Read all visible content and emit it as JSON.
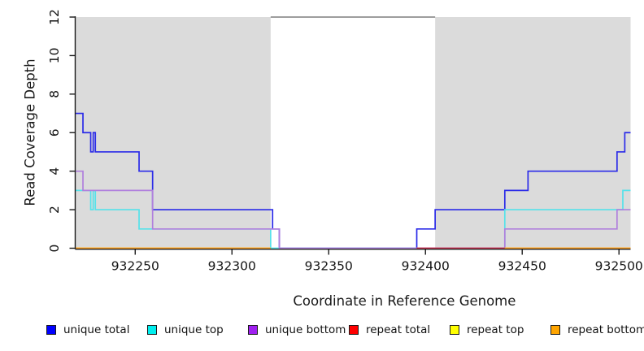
{
  "chart_data": {
    "type": "step-line",
    "title": "",
    "xlabel": "Coordinate in Reference Genome",
    "ylabel": "Read Coverage Depth",
    "xlim": [
      932219,
      932506
    ],
    "ylim": [
      0,
      12
    ],
    "x_ticks": [
      932250,
      932300,
      932350,
      932400,
      932450,
      932500
    ],
    "y_ticks": [
      0,
      2,
      4,
      6,
      8,
      10,
      12
    ],
    "grid": "off",
    "shaded_regions": [
      {
        "x0": 932219,
        "x1": 932320,
        "color": "#dbdbdb"
      },
      {
        "x0": 932405,
        "x1": 932506,
        "color": "#dbdbdb"
      }
    ],
    "gap_top_line": {
      "x0": 932320,
      "x1": 932405,
      "y": 12,
      "color": "#7d7d7d"
    },
    "series": [
      {
        "name": "unique total",
        "color": "#2b2be8",
        "segments": [
          [
            [
              932219,
              7
            ],
            [
              932223,
              6
            ],
            [
              932227,
              5
            ],
            [
              932228.3,
              6
            ],
            [
              932229.4,
              5
            ],
            [
              932252,
              4
            ],
            [
              932259,
              2
            ],
            [
              932321,
              1
            ],
            [
              932324.5,
              0
            ],
            [
              932395.5,
              1
            ],
            [
              932405,
              2
            ],
            [
              932441,
              3
            ],
            [
              932453,
              4
            ],
            [
              932499,
              5
            ],
            [
              932503,
              6
            ],
            [
              932506,
              6
            ]
          ]
        ]
      },
      {
        "name": "unique top",
        "color": "#55e2ea",
        "segments": [
          [
            [
              932219,
              3
            ],
            [
              932227,
              2
            ],
            [
              932228.3,
              3
            ],
            [
              932229.4,
              2
            ],
            [
              932252,
              1
            ],
            [
              932320,
              0
            ],
            [
              932441,
              2
            ],
            [
              932502,
              3
            ],
            [
              932506,
              3
            ]
          ]
        ]
      },
      {
        "name": "unique bottom",
        "color": "#b07fdd",
        "segments": [
          [
            [
              932219,
              4
            ],
            [
              932223,
              3
            ],
            [
              932259,
              1
            ],
            [
              932324.5,
              0
            ],
            [
              932441,
              1
            ],
            [
              932499,
              2
            ],
            [
              932506,
              2
            ]
          ]
        ]
      },
      {
        "name": "repeat total",
        "color": "#cc3350",
        "segments": [
          [
            [
              932395.5,
              0
            ],
            [
              932506,
              0
            ]
          ]
        ]
      },
      {
        "name": "repeat top",
        "color": "#ffee33",
        "segments": [
          [
            [
              932219,
              0
            ],
            [
              932320,
              0
            ]
          ],
          [
            [
              932441,
              0
            ],
            [
              932506,
              0
            ]
          ]
        ]
      },
      {
        "name": "repeat bottom",
        "color": "#ff9d1e",
        "segments": [
          [
            [
              932219,
              0
            ],
            [
              932320,
              0
            ]
          ],
          [
            [
              932441,
              0
            ],
            [
              932506,
              0
            ]
          ]
        ]
      }
    ]
  },
  "legend": {
    "items": [
      {
        "label": "unique total",
        "swatch": "#0000ff"
      },
      {
        "label": "unique top",
        "swatch": "#00eeee"
      },
      {
        "label": "unique bottom",
        "swatch": "#a020f0"
      },
      {
        "label": "repeat total",
        "swatch": "#ff0000"
      },
      {
        "label": "repeat top",
        "swatch": "#ffff00"
      },
      {
        "label": "repeat bottom",
        "swatch": "#ffa500"
      }
    ]
  }
}
